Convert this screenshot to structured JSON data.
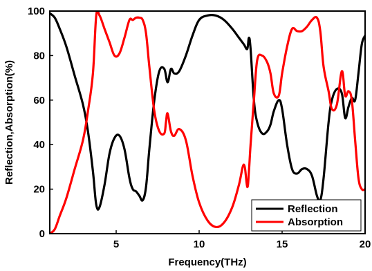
{
  "chart_data": {
    "type": "line",
    "title": "",
    "xlabel": "Frequency(THz)",
    "ylabel": "Reflection,Absorption(%)",
    "xlim": [
      1,
      20
    ],
    "ylim": [
      0,
      100
    ],
    "xticks": [
      5,
      10,
      15,
      20
    ],
    "yticks": [
      0,
      20,
      40,
      60,
      80,
      100
    ],
    "grid": false,
    "legend_position": "bottom-right",
    "series": [
      {
        "name": "Reflection",
        "color": "#000000",
        "x": [
          1.0,
          1.3,
          1.6,
          2.0,
          2.5,
          3.0,
          3.3,
          3.6,
          3.8,
          4.0,
          4.3,
          4.6,
          4.9,
          5.2,
          5.5,
          5.8,
          6.0,
          6.2,
          6.4,
          6.6,
          6.8,
          7.0,
          7.3,
          7.6,
          7.9,
          8.1,
          8.3,
          8.5,
          8.8,
          9.2,
          9.6,
          10.0,
          10.5,
          11.0,
          11.5,
          12.0,
          12.4,
          12.7,
          12.9,
          13.0,
          13.1,
          13.3,
          13.5,
          13.8,
          14.1,
          14.3,
          14.5,
          14.8,
          15.0,
          15.3,
          15.6,
          15.9,
          16.2,
          16.5,
          16.8,
          17.1,
          17.3,
          17.5,
          17.8,
          18.0,
          18.3,
          18.6,
          18.8,
          19.0,
          19.2,
          19.4,
          19.6,
          19.8,
          20.0
        ],
        "y": [
          99,
          97,
          92,
          84,
          71,
          58,
          46,
          28,
          13,
          12,
          22,
          36,
          43,
          44,
          38,
          25,
          20,
          19,
          17,
          15,
          21,
          38,
          60,
          73,
          74,
          68,
          74,
          72,
          73,
          80,
          89,
          96,
          98,
          98,
          96,
          92,
          88,
          85,
          83,
          88,
          83,
          60,
          50,
          45,
          46,
          49,
          55,
          60,
          56,
          40,
          29,
          27,
          29,
          29,
          26,
          17,
          15,
          25,
          50,
          60,
          65,
          63,
          52,
          57,
          61,
          60,
          72,
          85,
          89
        ]
      },
      {
        "name": "Absorption",
        "color": "#ff0000",
        "x": [
          1.0,
          1.3,
          1.6,
          2.0,
          2.5,
          3.0,
          3.3,
          3.6,
          3.8,
          4.0,
          4.3,
          4.6,
          4.9,
          5.2,
          5.5,
          5.8,
          6.0,
          6.2,
          6.4,
          6.6,
          6.8,
          7.0,
          7.3,
          7.6,
          7.9,
          8.0,
          8.1,
          8.3,
          8.5,
          8.8,
          9.2,
          9.6,
          10.0,
          10.5,
          11.0,
          11.5,
          12.0,
          12.4,
          12.7,
          12.9,
          13.0,
          13.1,
          13.3,
          13.5,
          13.8,
          14.1,
          14.3,
          14.5,
          14.8,
          15.0,
          15.3,
          15.6,
          15.9,
          16.2,
          16.5,
          16.8,
          17.1,
          17.3,
          17.5,
          17.8,
          18.0,
          18.3,
          18.6,
          18.8,
          19.0,
          19.2,
          19.4,
          19.6,
          19.8,
          20.0
        ],
        "y": [
          0,
          2,
          8,
          16,
          29,
          42,
          55,
          72,
          98,
          98,
          92,
          86,
          80,
          81,
          88,
          96,
          96,
          97,
          97,
          96,
          90,
          75,
          55,
          46,
          45,
          50,
          54,
          46,
          44,
          47,
          42,
          26,
          14,
          6,
          3,
          5,
          12,
          22,
          31,
          21,
          28,
          40,
          60,
          78,
          80,
          77,
          72,
          63,
          62,
          72,
          84,
          92,
          91,
          91,
          93,
          96,
          97,
          91,
          75,
          64,
          56,
          58,
          73,
          62,
          64,
          60,
          42,
          25,
          20,
          20
        ]
      }
    ]
  }
}
